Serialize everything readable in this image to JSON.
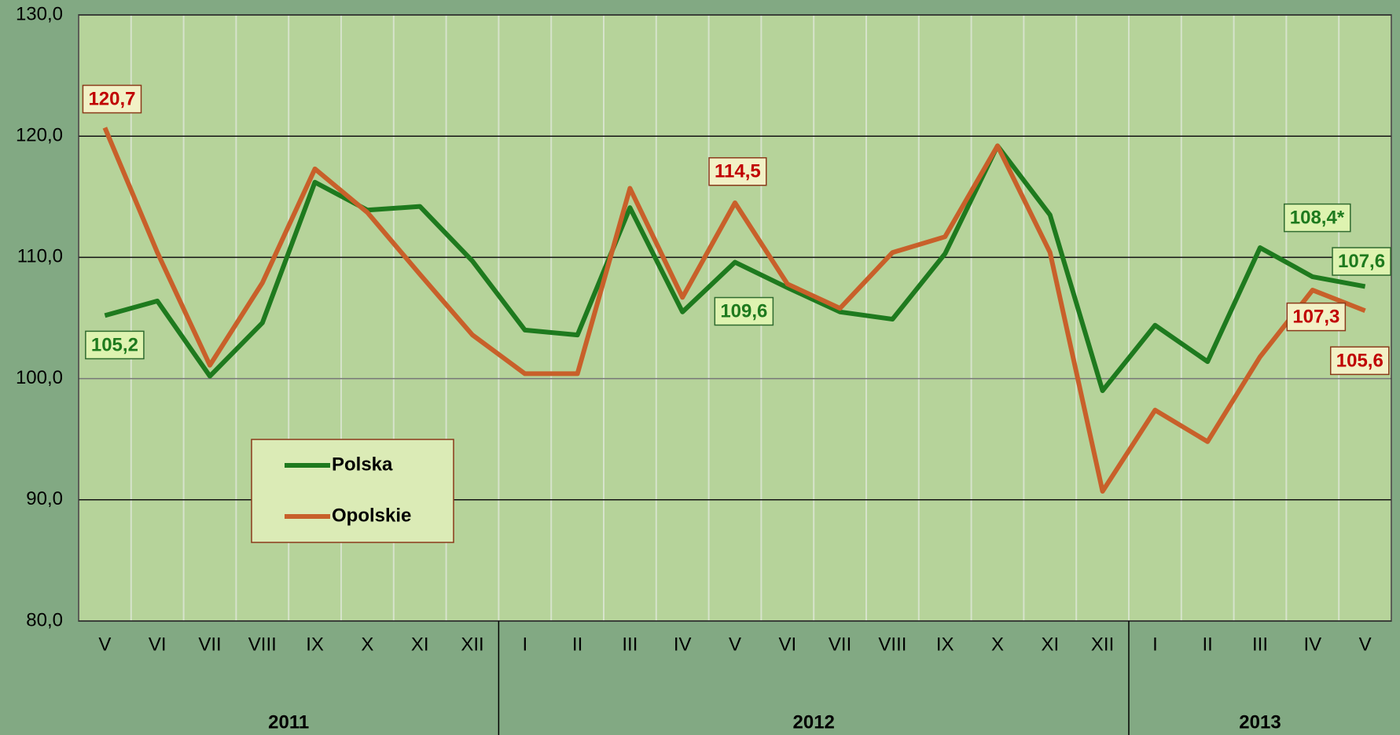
{
  "chart_data": {
    "type": "line",
    "categories": [
      "V",
      "VI",
      "VII",
      "VIII",
      "IX",
      "X",
      "XI",
      "XII",
      "I",
      "II",
      "III",
      "IV",
      "V",
      "VI",
      "VII",
      "VIII",
      "IX",
      "X",
      "XI",
      "XII",
      "I",
      "II",
      "III",
      "IV",
      "V"
    ],
    "x_groups": [
      {
        "label": "2011",
        "span": 8
      },
      {
        "label": "2012",
        "span": 12
      },
      {
        "label": "2013",
        "span": 5
      }
    ],
    "series": [
      {
        "name": "Polska",
        "color": "#1e7a1e",
        "values": [
          105.2,
          106.4,
          100.2,
          104.6,
          116.2,
          113.9,
          114.2,
          109.7,
          104.0,
          103.6,
          114.1,
          105.5,
          109.6,
          107.5,
          105.5,
          104.9,
          110.3,
          119.2,
          113.5,
          99.0,
          104.4,
          101.4,
          110.8,
          108.4,
          107.6
        ],
        "value_labels": [
          "105,2",
          null,
          null,
          null,
          null,
          null,
          null,
          null,
          null,
          null,
          null,
          null,
          "109,6",
          null,
          null,
          null,
          null,
          null,
          null,
          null,
          null,
          null,
          null,
          "108,4*",
          "107,6"
        ]
      },
      {
        "name": "Opolskie",
        "color": "#c8602a",
        "values": [
          120.7,
          110.4,
          101.1,
          107.9,
          117.3,
          113.7,
          108.6,
          103.6,
          100.4,
          100.4,
          115.7,
          106.7,
          114.5,
          107.8,
          105.8,
          110.4,
          111.7,
          119.2,
          110.4,
          90.7,
          97.4,
          94.8,
          101.8,
          107.3,
          105.6
        ],
        "value_labels": [
          "120,7",
          null,
          null,
          null,
          null,
          null,
          null,
          null,
          null,
          null,
          null,
          null,
          "114,5",
          null,
          null,
          null,
          null,
          null,
          null,
          null,
          null,
          null,
          null,
          "107,3",
          "105,6"
        ]
      }
    ],
    "ylim": [
      80,
      130
    ],
    "yticks": [
      {
        "value": 80,
        "label": "80,0"
      },
      {
        "value": 90,
        "label": "90,0"
      },
      {
        "value": 100,
        "label": "100,0"
      },
      {
        "value": 110,
        "label": "110,0"
      },
      {
        "value": 120,
        "label": "120,0"
      },
      {
        "value": 130,
        "label": "130,0"
      }
    ],
    "grid": true,
    "legend": "lower left"
  }
}
